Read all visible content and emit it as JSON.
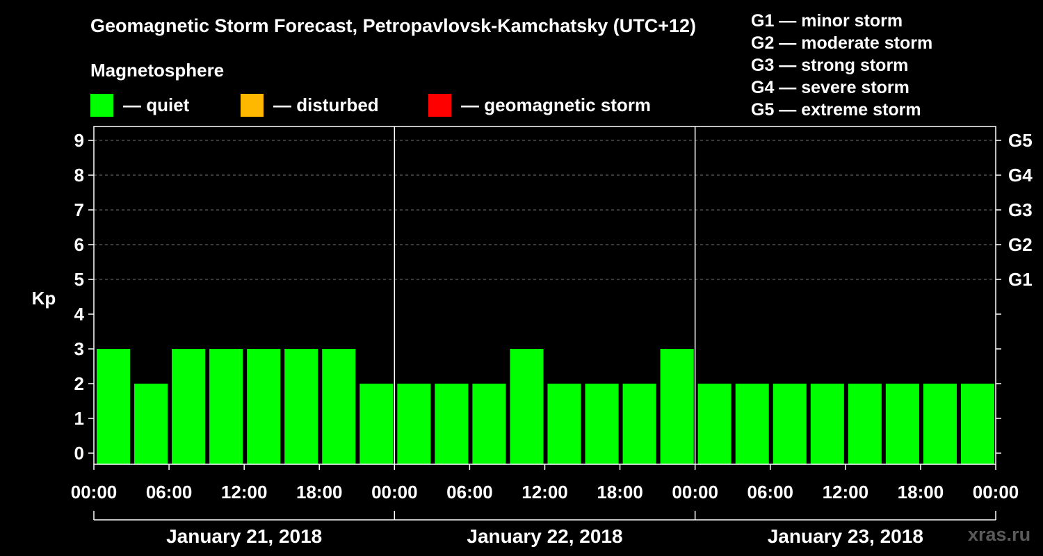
{
  "title": "Geomagnetic Storm Forecast, Petropavlovsk-Kamchatsky (UTC+12)",
  "legend": {
    "title": "Magnetosphere",
    "items": [
      {
        "label": "— quiet",
        "color": "#00ff00"
      },
      {
        "label": "— disturbed",
        "color": "#ffb800"
      },
      {
        "label": "— geomagnetic storm",
        "color": "#ff0000"
      }
    ]
  },
  "storm_scale": [
    "G1 — minor storm",
    "G2 — moderate storm",
    "G3 — strong storm",
    "G4 — severe storm",
    "G5 — extreme storm"
  ],
  "watermark": "xras.ru",
  "chart_data": {
    "type": "bar",
    "ylabel": "Kp",
    "ylim": [
      0,
      9
    ],
    "yticks": [
      0,
      1,
      2,
      3,
      4,
      5,
      6,
      7,
      8,
      9
    ],
    "right_axis": [
      {
        "kp": 5,
        "label": "G1"
      },
      {
        "kp": 6,
        "label": "G2"
      },
      {
        "kp": 7,
        "label": "G3"
      },
      {
        "kp": 8,
        "label": "G4"
      },
      {
        "kp": 9,
        "label": "G5"
      }
    ],
    "grid": "dashed horizontal at Kp 5–9",
    "x_tick_labels": [
      "00:00",
      "06:00",
      "12:00",
      "18:00",
      "00:00",
      "06:00",
      "12:00",
      "18:00",
      "00:00",
      "06:00",
      "12:00",
      "18:00",
      "00:00"
    ],
    "days": [
      "January 21, 2018",
      "January 22, 2018",
      "January 23, 2018"
    ],
    "bar_interval_hours": 3,
    "values": [
      3,
      2,
      3,
      3,
      3,
      3,
      3,
      2,
      2,
      2,
      2,
      3,
      2,
      2,
      2,
      3,
      2,
      2,
      2,
      2,
      2,
      2,
      2,
      2
    ],
    "color_thresholds": {
      "quiet": "Kp < 4",
      "disturbed": "Kp = 4",
      "storm": "Kp >= 5"
    }
  }
}
